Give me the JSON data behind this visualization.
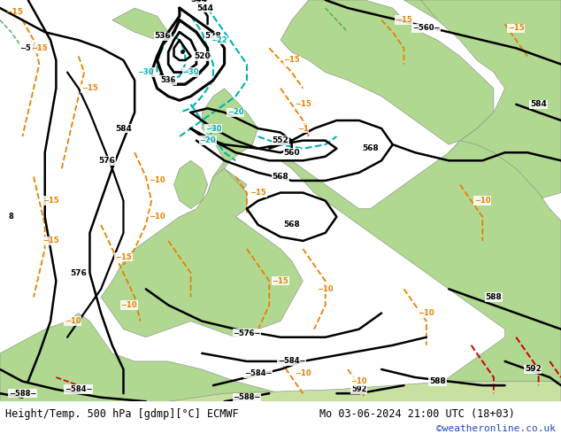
{
  "title_left": "Height/Temp. 500 hPa [gdmp][°C] ECMWF",
  "title_right": "Mo 03-06-2024 21:00 UTC (18+03)",
  "copyright": "©weatheronline.co.uk",
  "bg_ocean": "#c8c8c8",
  "bg_land": "#b8d898",
  "bg_land2": "#98c878",
  "coast_color": "#888888",
  "contour_black": "#000000",
  "contour_cyan": "#00b0b0",
  "contour_orange": "#e88000",
  "contour_red": "#cc0000",
  "contour_green": "#40aa40",
  "figsize": [
    6.34,
    4.9
  ],
  "dpi": 100
}
